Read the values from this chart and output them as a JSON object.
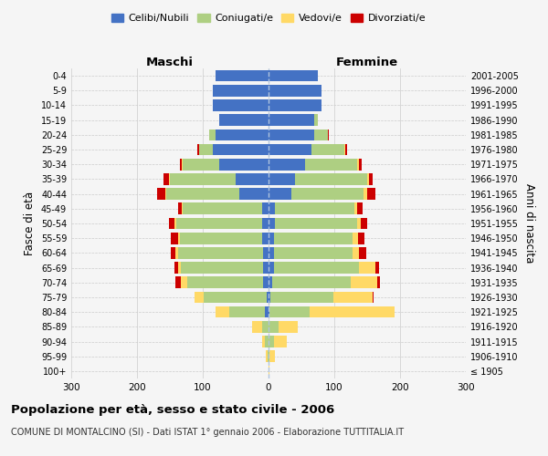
{
  "age_groups": [
    "100+",
    "95-99",
    "90-94",
    "85-89",
    "80-84",
    "75-79",
    "70-74",
    "65-69",
    "60-64",
    "55-59",
    "50-54",
    "45-49",
    "40-44",
    "35-39",
    "30-34",
    "25-29",
    "20-24",
    "15-19",
    "10-14",
    "5-9",
    "0-4"
  ],
  "birth_years": [
    "≤ 1905",
    "1906-1910",
    "1911-1915",
    "1916-1920",
    "1921-1925",
    "1926-1930",
    "1931-1935",
    "1936-1940",
    "1941-1945",
    "1946-1950",
    "1951-1955",
    "1956-1960",
    "1961-1965",
    "1966-1970",
    "1971-1975",
    "1976-1980",
    "1981-1985",
    "1986-1990",
    "1991-1995",
    "1996-2000",
    "2001-2005"
  ],
  "males": {
    "celibe": [
      0,
      0,
      0,
      0,
      5,
      3,
      8,
      8,
      8,
      10,
      10,
      10,
      45,
      50,
      75,
      85,
      80,
      75,
      85,
      85,
      80
    ],
    "coniugato": [
      0,
      2,
      5,
      10,
      55,
      95,
      115,
      125,
      130,
      125,
      130,
      120,
      110,
      100,
      55,
      20,
      10,
      0,
      0,
      0,
      0
    ],
    "vedovo": [
      0,
      2,
      5,
      15,
      20,
      15,
      10,
      5,
      3,
      3,
      3,
      2,
      2,
      2,
      2,
      1,
      0,
      0,
      0,
      0,
      0
    ],
    "divorziato": [
      0,
      0,
      0,
      0,
      0,
      0,
      8,
      5,
      8,
      10,
      8,
      5,
      12,
      8,
      3,
      2,
      0,
      0,
      0,
      0,
      0
    ]
  },
  "females": {
    "nubile": [
      0,
      0,
      0,
      0,
      2,
      3,
      5,
      8,
      8,
      8,
      10,
      10,
      35,
      40,
      55,
      65,
      70,
      70,
      80,
      80,
      75
    ],
    "coniugata": [
      0,
      2,
      8,
      15,
      60,
      95,
      120,
      130,
      120,
      120,
      125,
      120,
      110,
      110,
      80,
      50,
      20,
      5,
      0,
      0,
      0
    ],
    "vedova": [
      2,
      8,
      20,
      30,
      130,
      60,
      40,
      25,
      10,
      8,
      5,
      5,
      5,
      3,
      2,
      2,
      0,
      0,
      0,
      0,
      0
    ],
    "divorziata": [
      0,
      0,
      0,
      0,
      0,
      2,
      5,
      5,
      10,
      10,
      10,
      8,
      12,
      5,
      5,
      2,
      2,
      0,
      0,
      0,
      0
    ]
  },
  "colors": {
    "celibe": "#4472C4",
    "coniugato": "#AECF82",
    "vedovo": "#FFD966",
    "divorziato": "#CC0000"
  },
  "xlim": 300,
  "title": "Popolazione per età, sesso e stato civile - 2006",
  "subtitle": "COMUNE DI MONTALCINO (SI) - Dati ISTAT 1° gennaio 2006 - Elaborazione TUTTITALIA.IT",
  "ylabel_left": "Fasce di età",
  "ylabel_right": "Anni di nascita",
  "xlabel_left": "Maschi",
  "xlabel_right": "Femmine",
  "legend_labels": [
    "Celibi/Nubili",
    "Coniugati/e",
    "Vedovi/e",
    "Divorziati/e"
  ],
  "background_color": "#f5f5f5",
  "grid_color": "#cccccc"
}
